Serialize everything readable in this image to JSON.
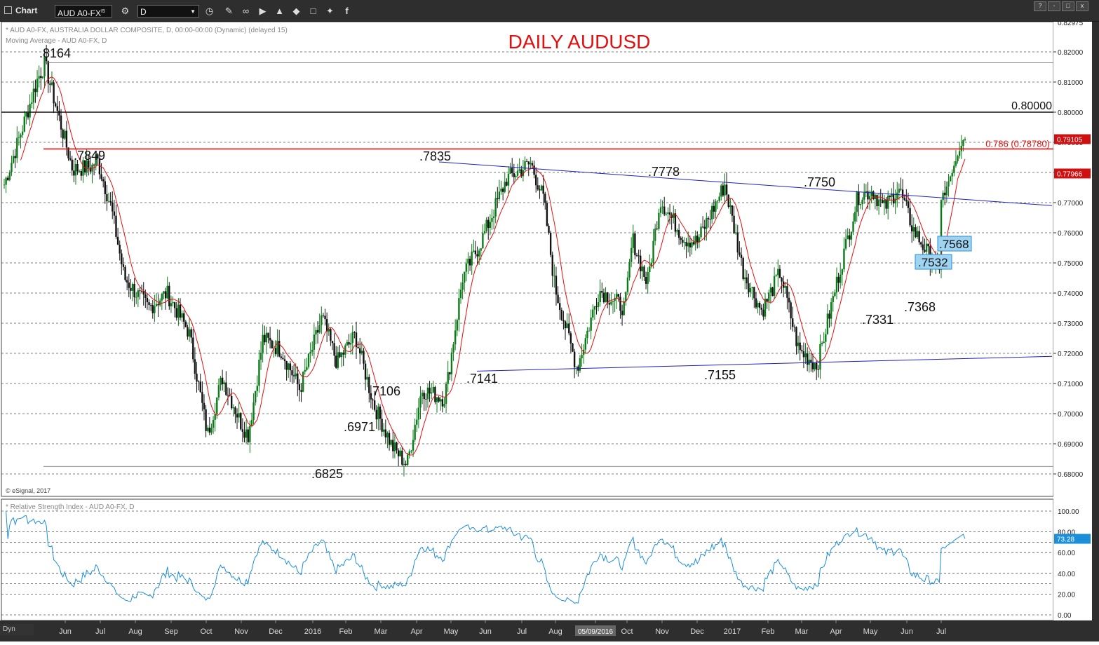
{
  "window": {
    "title": "Chart",
    "symbol": "AUD A0-FX",
    "symbol_superscript": "I5",
    "interval": "D",
    "toolbar_icons": [
      "settings-icon",
      "clock-icon",
      "pencil-icon",
      "draw-icon",
      "play-icon",
      "alert-icon",
      "tag-icon",
      "chat-icon",
      "twitter-icon",
      "facebook-icon"
    ],
    "window_buttons": [
      "?",
      "-",
      "□",
      "x"
    ],
    "status_label": "Dyn"
  },
  "chart_data": [
    {
      "type": "line",
      "title": "DAILY AUDUSD",
      "title_color": "#e01010",
      "header_line_1": "* AUD A0-FX, AUSTRALIA DOLLAR COMPOSITE, D, 00:00-00:00 (Dynamic) (delayed 15)",
      "header_line_2": "Moving Average - AUD A0-FX, D",
      "copyright": "© eSignal, 2017",
      "ylim": [
        0.678,
        0.83
      ],
      "y_ticks": [
        "0.68000",
        "0.69000",
        "0.70000",
        "0.71000",
        "0.72000",
        "0.73000",
        "0.74000",
        "0.75000",
        "0.76000",
        "0.77000",
        "0.78000",
        "0.79000",
        "0.80000",
        "0.81000",
        "0.82000"
      ],
      "y_top_label": "0.82975",
      "x_labels": [
        "Jun",
        "Jul",
        "Aug",
        "Sep",
        "Oct",
        "Nov",
        "Dec",
        "2016",
        "Feb",
        "Mar",
        "Apr",
        "May",
        "Jun",
        "Jul",
        "Aug",
        "05/09/2016",
        "Oct",
        "Nov",
        "Dec",
        "2017",
        "Feb",
        "Mar",
        "Apr",
        "May",
        "Jun",
        "Jul"
      ],
      "price_anchors": {
        "t": [
          0,
          10,
          18,
          22,
          37,
          48,
          50,
          58,
          65,
          78,
          88,
          100,
          110,
          118,
          128,
          132,
          135,
          140,
          150,
          160,
          172,
          180,
          190,
          200,
          210,
          218,
          226,
          238,
          240,
          248,
          258,
          272,
          285,
          292,
          298,
          310,
          322,
          336,
          340,
          348,
          355,
          368,
          375,
          390,
          400,
          410,
          420,
          430,
          440,
          450,
          462,
          470,
          476,
          484,
          492,
          500,
          508,
          510,
          514,
          520
        ],
        "close": [
          0.776,
          0.795,
          0.811,
          0.816,
          0.781,
          0.782,
          0.785,
          0.768,
          0.745,
          0.735,
          0.74,
          0.727,
          0.693,
          0.712,
          0.697,
          0.693,
          0.704,
          0.725,
          0.721,
          0.708,
          0.732,
          0.717,
          0.726,
          0.703,
          0.689,
          0.683,
          0.708,
          0.705,
          0.711,
          0.745,
          0.757,
          0.778,
          0.783,
          0.771,
          0.742,
          0.715,
          0.741,
          0.735,
          0.758,
          0.743,
          0.771,
          0.758,
          0.757,
          0.776,
          0.747,
          0.734,
          0.747,
          0.721,
          0.716,
          0.742,
          0.772,
          0.774,
          0.768,
          0.775,
          0.761,
          0.753,
          0.744,
          0.734,
          0.748,
          0.737
        ]
      },
      "series": [
        {
          "name": "AUD A0-FX",
          "color": "#0a6b15"
        },
        {
          "name": "Moving Average",
          "color": "#e01010"
        }
      ],
      "last_price_label": "0.79105",
      "ma_label": "0.77966",
      "horizontal_lines": [
        {
          "value": 0.8,
          "label": "0.80000",
          "color": "#111111"
        },
        {
          "value": 0.7878,
          "label": "0.786 (0.78780)",
          "color": "#e01010"
        },
        {
          "value": 0.8164,
          "label": "",
          "color": "#666666"
        },
        {
          "value": 0.6825,
          "label": "",
          "color": "#666666"
        }
      ],
      "trendlines": [
        {
          "from": [
            0.7835,
            "Apr"
          ],
          "to": [
            0.769,
            "Jul"
          ],
          "color": "#2020c0"
        },
        {
          "from": [
            0.7141,
            "May"
          ],
          "to": [
            0.719,
            "Jul"
          ],
          "color": "#2020c0"
        }
      ],
      "annotations": [
        ".8164",
        ".7849",
        ".7835",
        ".7778",
        ".7750",
        ".7106",
        ".6971",
        ".6825",
        ".7141",
        ".7155",
        ".7331",
        ".7368",
        ".7568",
        ".7532"
      ]
    },
    {
      "type": "line",
      "title": "* Relative Strength Index - AUD A0-FX, D",
      "ylim": [
        0,
        100
      ],
      "y_ticks": [
        "0.00",
        "20.00",
        "40.00",
        "60.00",
        "80.00",
        "100.00"
      ],
      "series": [
        {
          "name": "Relative Strength Index",
          "color": "#1c8fd8"
        }
      ],
      "last_value_label": "73.28",
      "oversold_level": 30,
      "overbought_level": 70
    }
  ]
}
